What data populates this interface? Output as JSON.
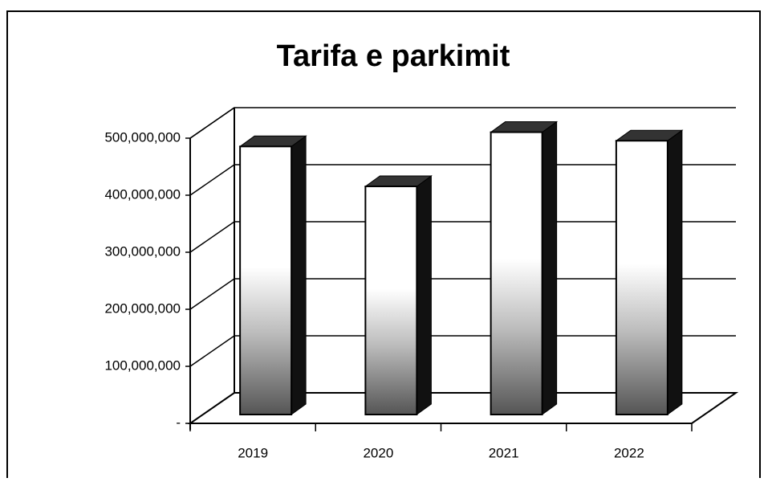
{
  "chart_data": {
    "type": "bar3d",
    "title": "Tarifa e parkimit",
    "categories": [
      "2019",
      "2020",
      "2021",
      "2022"
    ],
    "values": [
      470000000,
      400000000,
      495000000,
      480000000
    ],
    "ylim": [
      0,
      500000000
    ],
    "yticks": [
      {
        "value": 0,
        "label": "-"
      },
      {
        "value": 100000000,
        "label": "100,000,000"
      },
      {
        "value": 200000000,
        "label": "200,000,000"
      },
      {
        "value": 300000000,
        "label": "300,000,000"
      },
      {
        "value": 400000000,
        "label": "400,000,000"
      },
      {
        "value": 500000000,
        "label": "500,000,000"
      }
    ],
    "grid": true,
    "color": "#ffffff"
  }
}
